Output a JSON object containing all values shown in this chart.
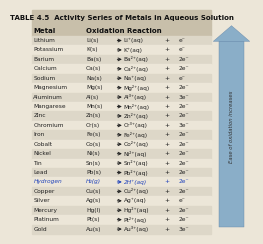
{
  "title": "TABLE 4.5  Activity Series of Metals in Aqueous Solution",
  "col1_header": "Metal",
  "col2_header": "Oxidation Reaction",
  "bg_color": "#ece6d8",
  "row_alt_color": "#ddd7c8",
  "header_bg": "#c8bfaa",
  "title_bg": "#c8bfaa",
  "rows": [
    [
      "Lithium",
      "Li(s)",
      "Li⁺(aq)",
      "e⁻",
      false
    ],
    [
      "Potassium",
      "K(s)",
      "K⁺(aq)",
      "e⁻",
      false
    ],
    [
      "Barium",
      "Ba(s)",
      "Ba²⁺(aq)",
      "2e⁻",
      false
    ],
    [
      "Calcium",
      "Ca(s)",
      "Ca²⁺(aq)",
      "2e⁻",
      false
    ],
    [
      "Sodium",
      "Na(s)",
      "Na⁺(aq)",
      "e⁻",
      false
    ],
    [
      "Magnesium",
      "Mg(s)",
      "Mg²⁺(aq)",
      "2e⁻",
      false
    ],
    [
      "Aluminum",
      "Al(s)",
      "Al³⁺(aq)",
      "3e⁻",
      false
    ],
    [
      "Mangarese",
      "Mn(s)",
      "Mn²⁺(aq)",
      "2e⁻",
      false
    ],
    [
      "Zinc",
      "Zn(s)",
      "Zn²⁺(aq)",
      "2e⁻",
      false
    ],
    [
      "Chromium",
      "Cr(s)",
      "Cr³⁺(aq)",
      "3e⁻",
      false
    ],
    [
      "Iron",
      "Fe(s)",
      "Fe²⁺(aq)",
      "2e⁻",
      false
    ],
    [
      "Cobalt",
      "Co(s)",
      "Co²⁺(aq)",
      "2e⁻",
      false
    ],
    [
      "Nickel",
      "Ni(s)",
      "Ni²⁺(aq)",
      "2e⁻",
      false
    ],
    [
      "Tin",
      "Sn(s)",
      "Sn²⁺(aq)",
      "2e⁻",
      false
    ],
    [
      "Lead",
      "Pb(s)",
      "Pb²⁺(aq)",
      "2e⁻",
      false
    ],
    [
      "Hydrogen",
      "H₂(g)",
      "2H⁺(aq)",
      "2e⁻",
      true
    ],
    [
      "Copper",
      "Cu(s)",
      "Cu²⁺(aq)",
      "2e⁻",
      false
    ],
    [
      "Silver",
      "Ag(s)",
      "Ag⁺(aq)",
      "e⁻",
      false
    ],
    [
      "Mercury",
      "Hg(l)",
      "Hg²⁺(aq)",
      "2e⁻",
      false
    ],
    [
      "Platinum",
      "Pt(s)",
      "Pt²⁺(aq)",
      "2e⁻",
      false
    ],
    [
      "Gold",
      "Au(s)",
      "Au³⁺(aq)",
      "3e⁻",
      false
    ]
  ],
  "arrow_label": "Ease of oxidation increases",
  "arrow_color": "#8aaec8",
  "arrow_edge_color": "#6688aa",
  "text_color": "#222222",
  "hydrogen_color": "#2244bb",
  "title_fontsize": 5.0,
  "header_fontsize": 5.0,
  "row_fontsize": 4.2
}
